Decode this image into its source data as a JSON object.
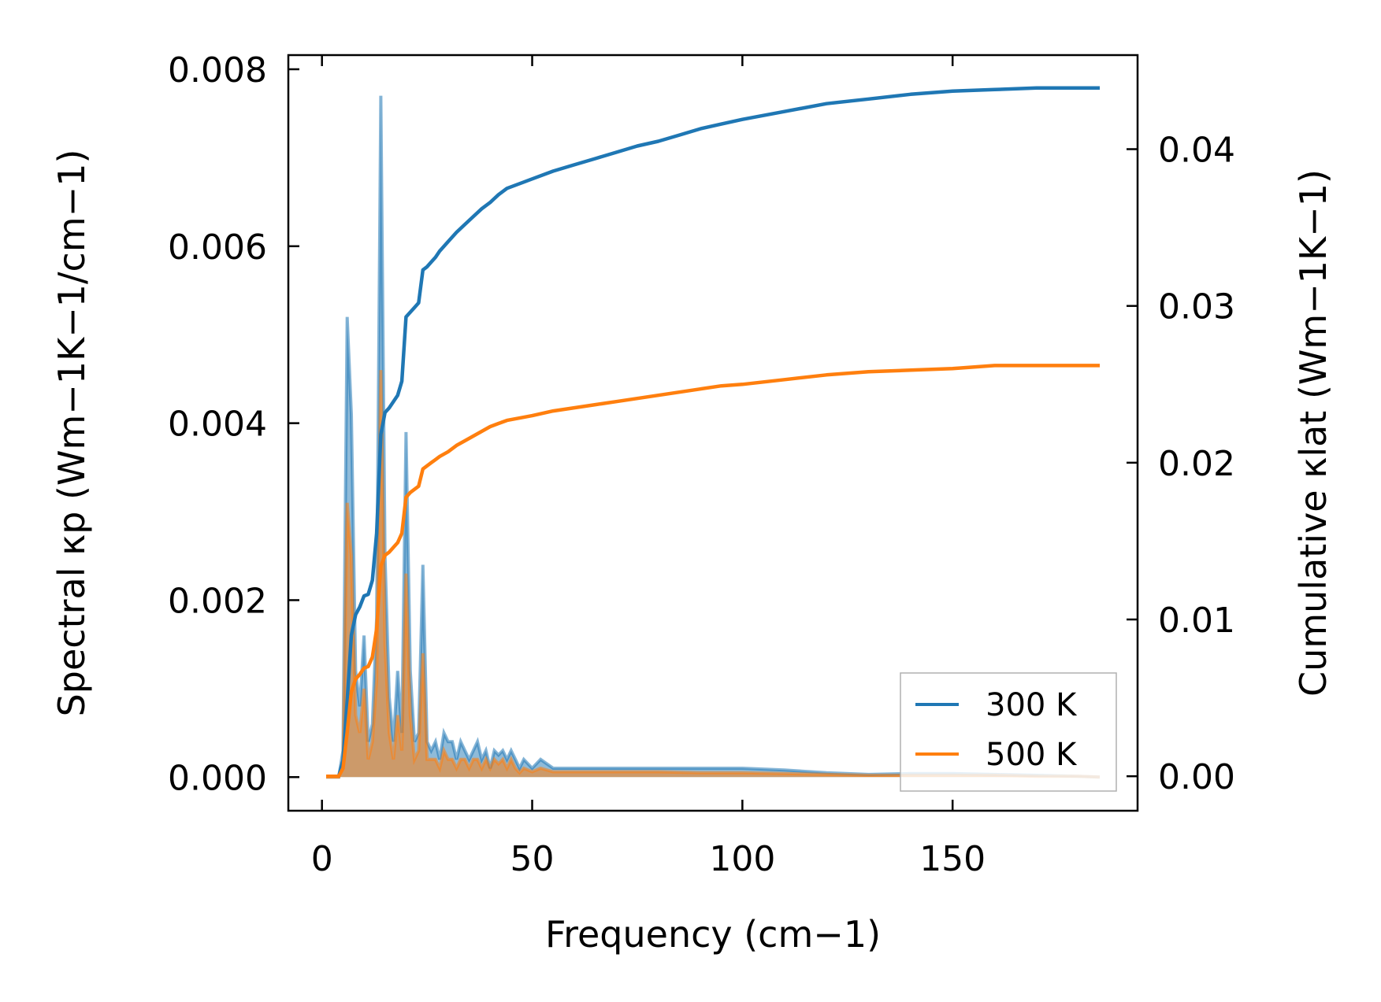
{
  "chart_data": {
    "type": "line",
    "title": "",
    "xlabel": "Frequency (cm−1)",
    "ylabel_left": "Spectral κp (Wm−1K−1/cm−1)",
    "ylabel_right": "Cumulative κlat (Wm−1K−1)",
    "xlim": [
      -8,
      194
    ],
    "ylim_left": [
      -0.00038,
      0.00816
    ],
    "ylim_right": [
      -0.0022,
      0.046
    ],
    "x_ticks": [
      0,
      50,
      100,
      150
    ],
    "x_tick_labels": [
      "0",
      "50",
      "100",
      "150"
    ],
    "y_left_ticks": [
      0,
      0.002,
      0.004,
      0.006,
      0.008
    ],
    "y_left_tick_labels": [
      "0.000",
      "0.002",
      "0.004",
      "0.006",
      "0.008"
    ],
    "y_right_ticks": [
      0,
      0.01,
      0.02,
      0.03,
      0.04
    ],
    "y_right_tick_labels": [
      "0.00",
      "0.01",
      "0.02",
      "0.03",
      "0.04"
    ],
    "grid": false,
    "legend_position": "bottom-right",
    "legend": [
      "300 K",
      "500 K"
    ],
    "colors": {
      "series_300": "#1f77b4",
      "series_500": "#ff7f0e",
      "fill_300": "#1f77b4",
      "fill_500": "#ff7f0e"
    },
    "spectral_series": [
      {
        "name": "300 K",
        "points": [
          [
            1,
            0
          ],
          [
            4,
            0
          ],
          [
            5,
            0.0003
          ],
          [
            6,
            0.0052
          ],
          [
            7,
            0.0041
          ],
          [
            8,
            0.0012
          ],
          [
            9,
            0.0008
          ],
          [
            10,
            0.0016
          ],
          [
            11,
            0.0004
          ],
          [
            12,
            0.0006
          ],
          [
            13,
            0.0018
          ],
          [
            14,
            0.0077
          ],
          [
            15,
            0.0025
          ],
          [
            16,
            0.0009
          ],
          [
            17,
            0.0004
          ],
          [
            18,
            0.0012
          ],
          [
            19,
            0.0005
          ],
          [
            20,
            0.0039
          ],
          [
            21,
            0.0012
          ],
          [
            22,
            0.0004
          ],
          [
            23,
            0.0005
          ],
          [
            24,
            0.0024
          ],
          [
            25,
            0.0004
          ],
          [
            26,
            0.0003
          ],
          [
            27,
            0.0004
          ],
          [
            28,
            0.0002
          ],
          [
            29,
            0.0005
          ],
          [
            30,
            0.0004
          ],
          [
            31,
            0.0004
          ],
          [
            32,
            0.0002
          ],
          [
            33,
            0.0004
          ],
          [
            34,
            0.0003
          ],
          [
            35,
            0.0002
          ],
          [
            36,
            0.0003
          ],
          [
            37,
            0.0004
          ],
          [
            38,
            0.0002
          ],
          [
            39,
            0.0003
          ],
          [
            40,
            0.0001
          ],
          [
            41,
            0.0003
          ],
          [
            42,
            0.00025
          ],
          [
            43,
            0.0003
          ],
          [
            44,
            0.0002
          ],
          [
            45,
            0.0003
          ],
          [
            46,
            0.0002
          ],
          [
            47,
            0.0001
          ],
          [
            48,
            0.0002
          ],
          [
            50,
            0.0001
          ],
          [
            52,
            0.0002
          ],
          [
            55,
            0.0001
          ],
          [
            60,
            0.0001
          ],
          [
            65,
            0.0001
          ],
          [
            70,
            0.0001
          ],
          [
            75,
            0.0001
          ],
          [
            80,
            0.0001
          ],
          [
            90,
            0.0001
          ],
          [
            100,
            0.0001
          ],
          [
            110,
            8e-05
          ],
          [
            120,
            5e-05
          ],
          [
            130,
            3e-05
          ],
          [
            140,
            4e-05
          ],
          [
            150,
            4e-05
          ],
          [
            160,
            3e-05
          ],
          [
            170,
            2e-05
          ],
          [
            180,
            1e-05
          ],
          [
            185,
            0
          ]
        ]
      },
      {
        "name": "500 K",
        "points": [
          [
            1,
            0
          ],
          [
            4,
            0
          ],
          [
            5,
            0.0002
          ],
          [
            6,
            0.0031
          ],
          [
            7,
            0.0025
          ],
          [
            8,
            0.0007
          ],
          [
            9,
            0.0005
          ],
          [
            10,
            0.001
          ],
          [
            11,
            0.0002
          ],
          [
            12,
            0.0004
          ],
          [
            13,
            0.0011
          ],
          [
            14,
            0.0046
          ],
          [
            15,
            0.0015
          ],
          [
            16,
            0.0005
          ],
          [
            17,
            0.0002
          ],
          [
            18,
            0.0007
          ],
          [
            19,
            0.0003
          ],
          [
            20,
            0.0023
          ],
          [
            21,
            0.0007
          ],
          [
            22,
            0.0002
          ],
          [
            23,
            0.0003
          ],
          [
            24,
            0.0014
          ],
          [
            25,
            0.0002
          ],
          [
            26,
            0.0002
          ],
          [
            27,
            0.0002
          ],
          [
            28,
            0.0001
          ],
          [
            29,
            0.0003
          ],
          [
            30,
            0.0002
          ],
          [
            31,
            0.0002
          ],
          [
            32,
            0.0001
          ],
          [
            33,
            0.0002
          ],
          [
            34,
            0.0002
          ],
          [
            35,
            0.0001
          ],
          [
            36,
            0.0002
          ],
          [
            37,
            0.0002
          ],
          [
            38,
            0.0001
          ],
          [
            39,
            0.0002
          ],
          [
            40,
            0.0001
          ],
          [
            41,
            0.0002
          ],
          [
            42,
            0.00015
          ],
          [
            43,
            0.0002
          ],
          [
            44,
            0.0001
          ],
          [
            45,
            0.0002
          ],
          [
            46,
            0.0001
          ],
          [
            47,
            5e-05
          ],
          [
            48,
            0.0001
          ],
          [
            50,
            6e-05
          ],
          [
            52,
            0.0001
          ],
          [
            55,
            6e-05
          ],
          [
            60,
            6e-05
          ],
          [
            65,
            6e-05
          ],
          [
            70,
            6e-05
          ],
          [
            75,
            6e-05
          ],
          [
            80,
            6e-05
          ],
          [
            90,
            5e-05
          ],
          [
            100,
            5e-05
          ],
          [
            110,
            4e-05
          ],
          [
            120,
            3e-05
          ],
          [
            130,
            2e-05
          ],
          [
            140,
            2e-05
          ],
          [
            150,
            2e-05
          ],
          [
            160,
            2e-05
          ],
          [
            170,
            1e-05
          ],
          [
            180,
            1e-05
          ],
          [
            185,
            0
          ]
        ]
      }
    ],
    "cumulative_series": [
      {
        "name": "300 K",
        "points": [
          [
            1,
            0
          ],
          [
            4,
            0
          ],
          [
            5,
            0.001
          ],
          [
            6,
            0.0048
          ],
          [
            7,
            0.009
          ],
          [
            8,
            0.0103
          ],
          [
            9,
            0.0108
          ],
          [
            10,
            0.0115
          ],
          [
            11,
            0.0116
          ],
          [
            12,
            0.0125
          ],
          [
            13,
            0.0155
          ],
          [
            14,
            0.0218
          ],
          [
            15,
            0.0232
          ],
          [
            16,
            0.0235
          ],
          [
            17,
            0.0239
          ],
          [
            18,
            0.0243
          ],
          [
            19,
            0.0252
          ],
          [
            20,
            0.0293
          ],
          [
            21,
            0.0296
          ],
          [
            22,
            0.0299
          ],
          [
            23,
            0.0302
          ],
          [
            24,
            0.0323
          ],
          [
            25,
            0.0325
          ],
          [
            26,
            0.0328
          ],
          [
            27,
            0.0331
          ],
          [
            28,
            0.0335
          ],
          [
            30,
            0.0341
          ],
          [
            32,
            0.0347
          ],
          [
            34,
            0.0352
          ],
          [
            36,
            0.0357
          ],
          [
            38,
            0.0362
          ],
          [
            40,
            0.0366
          ],
          [
            42,
            0.0371
          ],
          [
            44,
            0.0375
          ],
          [
            46,
            0.0377
          ],
          [
            48,
            0.0379
          ],
          [
            50,
            0.0381
          ],
          [
            55,
            0.0386
          ],
          [
            60,
            0.039
          ],
          [
            65,
            0.0394
          ],
          [
            70,
            0.0398
          ],
          [
            75,
            0.0402
          ],
          [
            80,
            0.0405
          ],
          [
            85,
            0.0409
          ],
          [
            90,
            0.0413
          ],
          [
            95,
            0.0416
          ],
          [
            100,
            0.0419
          ],
          [
            110,
            0.0424
          ],
          [
            120,
            0.0429
          ],
          [
            130,
            0.0432
          ],
          [
            140,
            0.0435
          ],
          [
            150,
            0.0437
          ],
          [
            160,
            0.0438
          ],
          [
            170,
            0.0439
          ],
          [
            185,
            0.0439
          ]
        ]
      },
      {
        "name": "500 K",
        "points": [
          [
            1,
            0
          ],
          [
            4,
            0
          ],
          [
            5,
            0.0005
          ],
          [
            6,
            0.0028
          ],
          [
            7,
            0.0054
          ],
          [
            8,
            0.0062
          ],
          [
            9,
            0.0065
          ],
          [
            10,
            0.0069
          ],
          [
            11,
            0.007
          ],
          [
            12,
            0.0076
          ],
          [
            13,
            0.0094
          ],
          [
            14,
            0.0134
          ],
          [
            15,
            0.0141
          ],
          [
            16,
            0.0143
          ],
          [
            17,
            0.0146
          ],
          [
            18,
            0.0149
          ],
          [
            19,
            0.0155
          ],
          [
            20,
            0.0178
          ],
          [
            21,
            0.0181
          ],
          [
            22,
            0.0183
          ],
          [
            23,
            0.0185
          ],
          [
            24,
            0.0196
          ],
          [
            25,
            0.0198
          ],
          [
            26,
            0.02
          ],
          [
            27,
            0.0202
          ],
          [
            28,
            0.0204
          ],
          [
            30,
            0.0207
          ],
          [
            32,
            0.0211
          ],
          [
            34,
            0.0214
          ],
          [
            36,
            0.0217
          ],
          [
            38,
            0.022
          ],
          [
            40,
            0.0223
          ],
          [
            42,
            0.0225
          ],
          [
            44,
            0.0227
          ],
          [
            46,
            0.0228
          ],
          [
            48,
            0.0229
          ],
          [
            50,
            0.023
          ],
          [
            55,
            0.0233
          ],
          [
            60,
            0.0235
          ],
          [
            65,
            0.0237
          ],
          [
            70,
            0.0239
          ],
          [
            75,
            0.0241
          ],
          [
            80,
            0.0243
          ],
          [
            85,
            0.0245
          ],
          [
            90,
            0.0247
          ],
          [
            95,
            0.0249
          ],
          [
            100,
            0.025
          ],
          [
            110,
            0.0253
          ],
          [
            120,
            0.0256
          ],
          [
            130,
            0.0258
          ],
          [
            140,
            0.0259
          ],
          [
            150,
            0.026
          ],
          [
            160,
            0.0262
          ],
          [
            170,
            0.0262
          ],
          [
            185,
            0.0262
          ]
        ]
      }
    ]
  }
}
